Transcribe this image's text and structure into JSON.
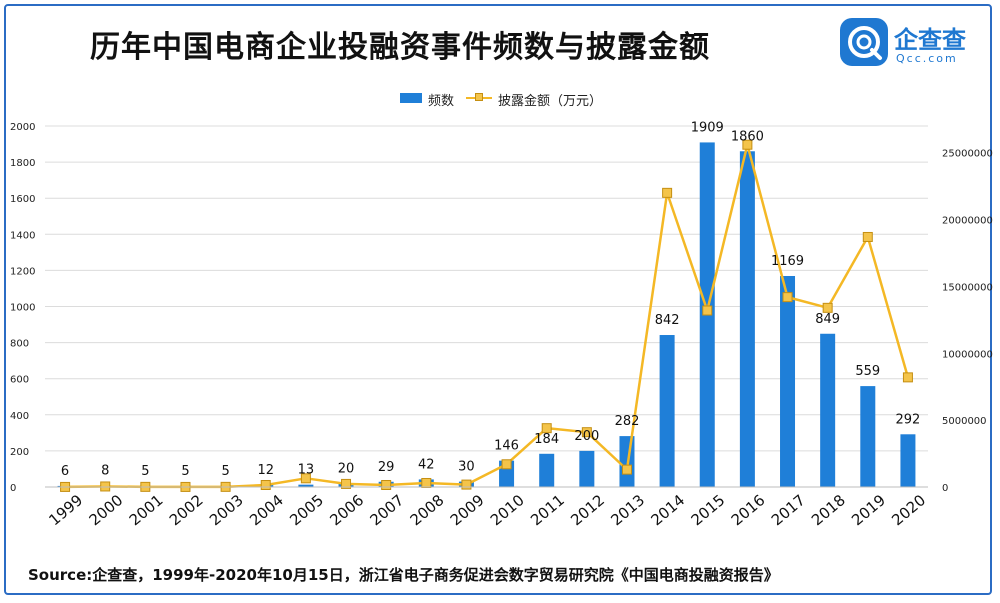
{
  "title": "历年中国电商企业投融资事件频数与披露金额",
  "logo": {
    "name": "企查查",
    "domain": "Qcc.com"
  },
  "source": "Source:企查查，1999年-2020年10月15日，浙江省电子商务促进会数字贸易研究院《中国电商投融资报告》",
  "colors": {
    "bar": "#1f7fd8",
    "line": "#f4b825",
    "marker": "#f4c44a",
    "frame": "#2b6cc4"
  },
  "chart_data": {
    "type": "bar",
    "categories": [
      "1999",
      "2000",
      "2001",
      "2002",
      "2003",
      "2004",
      "2005",
      "2006",
      "2007",
      "2008",
      "2009",
      "2010",
      "2011",
      "2012",
      "2013",
      "2014",
      "2015",
      "2016",
      "2017",
      "2018",
      "2019",
      "2020"
    ],
    "series": [
      {
        "name": "频数",
        "type": "bar",
        "axis": "left",
        "values": [
          6,
          8,
          5,
          5,
          5,
          12,
          13,
          20,
          29,
          42,
          30,
          146,
          184,
          200,
          282,
          842,
          1909,
          1860,
          1169,
          849,
          559,
          292
        ],
        "data_labels": true
      },
      {
        "name": "披露金额（万元）",
        "type": "line",
        "axis": "right",
        "values": [
          5000,
          40000,
          10000,
          5000,
          10000,
          150000,
          650000,
          230000,
          150000,
          300000,
          180000,
          1700000,
          4400000,
          4100000,
          1300000,
          22000000,
          13200000,
          25600000,
          14200000,
          13400000,
          18700000,
          8200000
        ]
      }
    ],
    "y_left": {
      "min": 0,
      "max": 2000,
      "ticks": [
        0,
        200,
        400,
        600,
        800,
        1000,
        1200,
        1400,
        1600,
        1800,
        2000
      ]
    },
    "y_right": {
      "min": 0,
      "max": 27000000,
      "ticks": [
        0,
        5000000,
        10000000,
        15000000,
        20000000,
        25000000
      ]
    },
    "grid": true,
    "legend_position": "top-center"
  }
}
